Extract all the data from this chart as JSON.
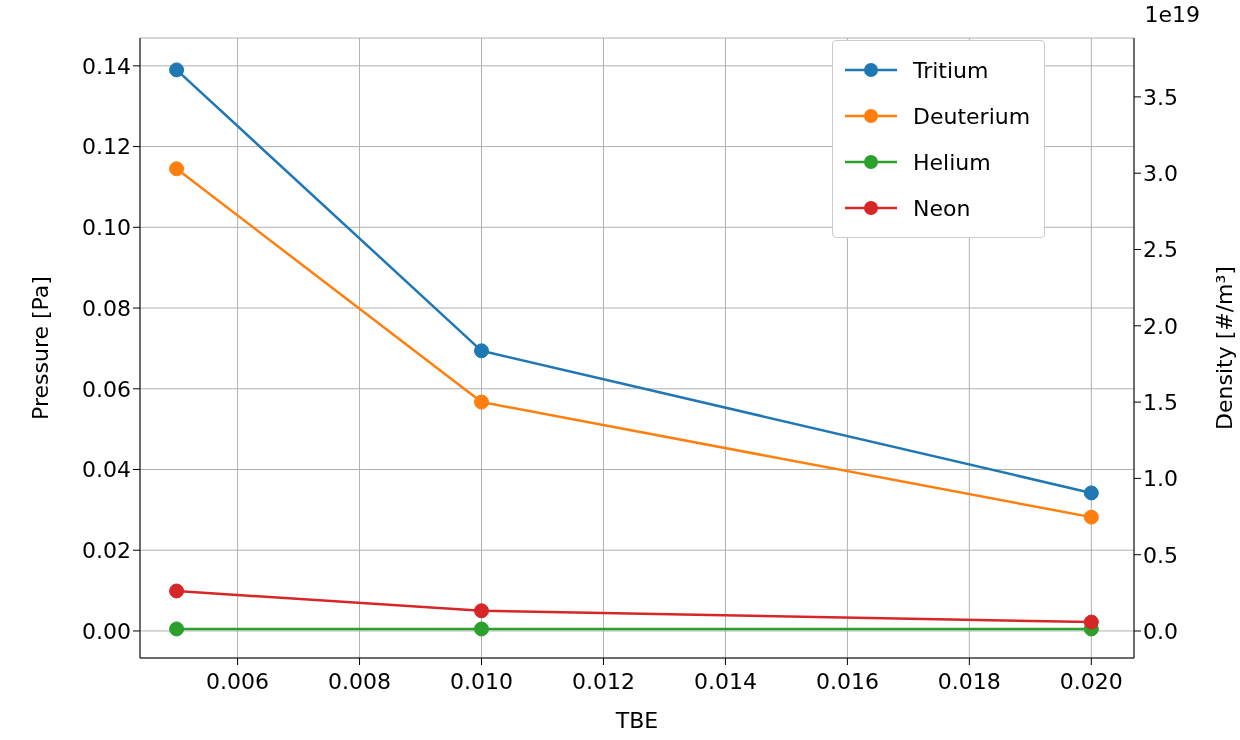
{
  "chart_data": {
    "type": "line",
    "xlabel": "TBE",
    "ylabel": "Pressure [Pa]",
    "y2label": "Density [#/m³]",
    "x": [
      0.005,
      0.01,
      0.02
    ],
    "series": [
      {
        "name": "Tritium",
        "color": "#1f77b4",
        "values": [
          0.139,
          0.0694,
          0.0342
        ]
      },
      {
        "name": "Deuterium",
        "color": "#ff7f0e",
        "values": [
          0.1145,
          0.0567,
          0.0282
        ]
      },
      {
        "name": "Helium",
        "color": "#2ca02c",
        "values": [
          0.0005,
          0.0005,
          0.0005
        ]
      },
      {
        "name": "Neon",
        "color": "#d62728",
        "values": [
          0.0099,
          0.005,
          0.0022
        ]
      }
    ],
    "xlim": [
      0.0044,
      0.0207
    ],
    "xticks": [
      {
        "value": 0.006,
        "label": "0.006"
      },
      {
        "value": 0.008,
        "label": "0.008"
      },
      {
        "value": 0.01,
        "label": "0.010"
      },
      {
        "value": 0.012,
        "label": "0.012"
      },
      {
        "value": 0.014,
        "label": "0.014"
      },
      {
        "value": 0.016,
        "label": "0.016"
      },
      {
        "value": 0.018,
        "label": "0.018"
      },
      {
        "value": 0.02,
        "label": "0.020"
      }
    ],
    "ylim": [
      -0.0067,
      0.1469
    ],
    "yticks": [
      {
        "value": 0,
        "label": "0.00"
      },
      {
        "value": 0.02,
        "label": "0.02"
      },
      {
        "value": 0.04,
        "label": "0.04"
      },
      {
        "value": 0.06,
        "label": "0.06"
      },
      {
        "value": 0.08,
        "label": "0.08"
      },
      {
        "value": 0.1,
        "label": "0.10"
      },
      {
        "value": 0.12,
        "label": "0.12"
      },
      {
        "value": 0.14,
        "label": "0.14"
      }
    ],
    "y2lim": [
      -0.177,
      3.886
    ],
    "y2ticks": [
      {
        "value": 0,
        "label": "0.0"
      },
      0.5,
      {
        "value": 1,
        "label": "1.0"
      },
      1.5,
      {
        "value": 2,
        "label": "2.0"
      },
      2.5,
      {
        "value": 3,
        "label": "3.0"
      },
      3.5
    ],
    "annotations": [
      "1e19"
    ],
    "grid": true,
    "legend": "top right",
    "marker": "circle",
    "line_style": "solid"
  }
}
